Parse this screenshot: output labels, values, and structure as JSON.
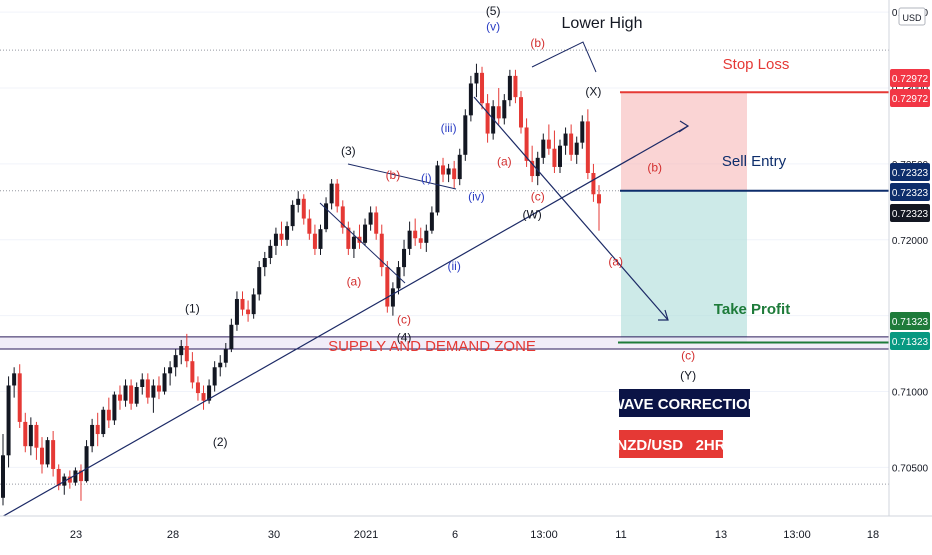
{
  "chart_data": {
    "type": "candlestick",
    "symbol": "NZD/USD",
    "timeframe": "2HR",
    "currency_label": "USD",
    "y_axis": {
      "ylim": [
        0.7018,
        0.7358
      ],
      "ticks": [
        0.705,
        0.71,
        0.715,
        0.72,
        0.725,
        0.73,
        0.735
      ],
      "tick_labels": [
        "0.70500",
        "0.71000",
        "0.71500",
        "0.72000",
        "0.72500",
        "0.73000",
        "0.73500"
      ]
    },
    "x_axis": {
      "tick_labels": [
        "23",
        "28",
        "30",
        "2021",
        "6",
        "13:00",
        "11",
        "13",
        "13:00",
        "18"
      ]
    },
    "price_badges": [
      {
        "label": "0.72972",
        "value": 0.72972,
        "color": "#f23645"
      },
      {
        "label": "0.72972",
        "value": 0.72972,
        "color": "#f23645"
      },
      {
        "label": "0.72323",
        "value": 0.72323,
        "color": "#0d2d6b"
      },
      {
        "label": "0.72323",
        "value": 0.72323,
        "color": "#0d2d6b"
      },
      {
        "label": "0.72323",
        "value": 0.72323,
        "color": "#131722"
      },
      {
        "label": "0.71323",
        "value": 0.71323,
        "color": "#1e7b3a"
      },
      {
        "label": "0.71323",
        "value": 0.71323,
        "color": "#089981"
      }
    ],
    "trade": {
      "stop_loss_label": "Stop Loss",
      "stop_loss": 0.72972,
      "entry_label": "Sell Entry",
      "entry": 0.72323,
      "take_profit_label": "Take Profit",
      "take_profit": 0.71323
    },
    "zone_label": "SUPPLY AND DEMAND ZONE",
    "zone": [
      0.7128,
      0.7136
    ],
    "annotations": {
      "lower_high": "Lower High",
      "wave_correction": "WAVE CORRECTION",
      "pair_timeframe": "NZD/USD   2HR"
    },
    "wave_labels": [
      {
        "text": "(5)",
        "color": "#131722",
        "x": 88,
        "y": 0.7348
      },
      {
        "text": "(v)",
        "color": "#2b3ec4",
        "x": 88,
        "y": 0.7338
      },
      {
        "text": "(b)",
        "color": "#d32f2f",
        "x": 96,
        "y": 0.7327
      },
      {
        "text": "(X)",
        "color": "#131722",
        "x": 106,
        "y": 0.7295
      },
      {
        "text": "(3)",
        "color": "#131722",
        "x": 62,
        "y": 0.7256
      },
      {
        "text": "(b)",
        "color": "#d32f2f",
        "x": 70,
        "y": 0.724
      },
      {
        "text": "(i)",
        "color": "#2b3ec4",
        "x": 76,
        "y": 0.7238
      },
      {
        "text": "(iii)",
        "color": "#2b3ec4",
        "x": 80,
        "y": 0.7271
      },
      {
        "text": "(a)",
        "color": "#d32f2f",
        "x": 90,
        "y": 0.7249
      },
      {
        "text": "(iv)",
        "color": "#2b3ec4",
        "x": 85,
        "y": 0.7226
      },
      {
        "text": "(c)",
        "color": "#d32f2f",
        "x": 96,
        "y": 0.7226
      },
      {
        "text": "(W)",
        "color": "#131722",
        "x": 95,
        "y": 0.7214
      },
      {
        "text": "(b)",
        "color": "#d32f2f",
        "x": 117,
        "y": 0.7245
      },
      {
        "text": "(a)",
        "color": "#d32f2f",
        "x": 110,
        "y": 0.7183
      },
      {
        "text": "(a)",
        "color": "#d32f2f",
        "x": 63,
        "y": 0.717
      },
      {
        "text": "(ii)",
        "color": "#2b3ec4",
        "x": 81,
        "y": 0.718
      },
      {
        "text": "(c)",
        "color": "#d32f2f",
        "x": 72,
        "y": 0.7145
      },
      {
        "text": "(4)",
        "color": "#131722",
        "x": 72,
        "y": 0.7133
      },
      {
        "text": "(1)",
        "color": "#131722",
        "x": 34,
        "y": 0.7152
      },
      {
        "text": "(2)",
        "color": "#131722",
        "x": 39,
        "y": 0.7064
      },
      {
        "text": "(c)",
        "color": "#d32f2f",
        "x": 123,
        "y": 0.7121
      },
      {
        "text": "(Y)",
        "color": "#131722",
        "x": 123,
        "y": 0.7108
      }
    ],
    "candles": [
      [
        0.703,
        0.7072,
        0.7025,
        0.7058
      ],
      [
        0.7058,
        0.711,
        0.705,
        0.7104
      ],
      [
        0.7104,
        0.7116,
        0.7096,
        0.7112
      ],
      [
        0.7112,
        0.7118,
        0.7076,
        0.708
      ],
      [
        0.708,
        0.7086,
        0.706,
        0.7064
      ],
      [
        0.7064,
        0.7083,
        0.7058,
        0.7078
      ],
      [
        0.7078,
        0.708,
        0.7055,
        0.7063
      ],
      [
        0.7063,
        0.707,
        0.7046,
        0.7052
      ],
      [
        0.7052,
        0.707,
        0.705,
        0.7068
      ],
      [
        0.7068,
        0.7074,
        0.7044,
        0.7049
      ],
      [
        0.7049,
        0.7052,
        0.7035,
        0.7038
      ],
      [
        0.7038,
        0.7046,
        0.7032,
        0.7044
      ],
      [
        0.7044,
        0.7048,
        0.7036,
        0.704
      ],
      [
        0.704,
        0.705,
        0.7038,
        0.7048
      ],
      [
        0.7048,
        0.7052,
        0.7028,
        0.7041
      ],
      [
        0.7041,
        0.7068,
        0.704,
        0.7064
      ],
      [
        0.7064,
        0.7082,
        0.706,
        0.7078
      ],
      [
        0.7078,
        0.7086,
        0.7064,
        0.7072
      ],
      [
        0.7072,
        0.709,
        0.707,
        0.7088
      ],
      [
        0.7088,
        0.7096,
        0.7076,
        0.7081
      ],
      [
        0.7081,
        0.71,
        0.7078,
        0.7098
      ],
      [
        0.7098,
        0.7104,
        0.7088,
        0.7094
      ],
      [
        0.7094,
        0.7108,
        0.709,
        0.7104
      ],
      [
        0.7104,
        0.7108,
        0.7088,
        0.7092
      ],
      [
        0.7092,
        0.7106,
        0.709,
        0.7103
      ],
      [
        0.7103,
        0.7112,
        0.7098,
        0.7108
      ],
      [
        0.7108,
        0.7112,
        0.7092,
        0.7096
      ],
      [
        0.7096,
        0.7108,
        0.7086,
        0.7104
      ],
      [
        0.7104,
        0.711,
        0.7095,
        0.71
      ],
      [
        0.71,
        0.7116,
        0.7098,
        0.7112
      ],
      [
        0.7112,
        0.712,
        0.7104,
        0.7116
      ],
      [
        0.7116,
        0.7128,
        0.711,
        0.7124
      ],
      [
        0.7124,
        0.7134,
        0.7118,
        0.713
      ],
      [
        0.713,
        0.7138,
        0.7116,
        0.712
      ],
      [
        0.712,
        0.7126,
        0.7102,
        0.7106
      ],
      [
        0.7106,
        0.711,
        0.7094,
        0.7099
      ],
      [
        0.7099,
        0.7104,
        0.7088,
        0.7094
      ],
      [
        0.7094,
        0.7108,
        0.7092,
        0.7104
      ],
      [
        0.7104,
        0.712,
        0.71,
        0.7116
      ],
      [
        0.7116,
        0.7124,
        0.711,
        0.7119
      ],
      [
        0.7119,
        0.7132,
        0.7116,
        0.7128
      ],
      [
        0.7128,
        0.7148,
        0.7126,
        0.7144
      ],
      [
        0.7144,
        0.7166,
        0.714,
        0.7161
      ],
      [
        0.7161,
        0.7166,
        0.715,
        0.7154
      ],
      [
        0.7154,
        0.716,
        0.7146,
        0.7151
      ],
      [
        0.7151,
        0.7168,
        0.7148,
        0.7164
      ],
      [
        0.7164,
        0.7186,
        0.716,
        0.7182
      ],
      [
        0.7182,
        0.7192,
        0.7176,
        0.7188
      ],
      [
        0.7188,
        0.72,
        0.7184,
        0.7196
      ],
      [
        0.7196,
        0.7208,
        0.719,
        0.7204
      ],
      [
        0.7204,
        0.7212,
        0.7196,
        0.72
      ],
      [
        0.72,
        0.7212,
        0.7196,
        0.7209
      ],
      [
        0.7209,
        0.7226,
        0.7206,
        0.7223
      ],
      [
        0.7223,
        0.7232,
        0.7218,
        0.7227
      ],
      [
        0.7227,
        0.723,
        0.721,
        0.7214
      ],
      [
        0.7214,
        0.722,
        0.72,
        0.7204
      ],
      [
        0.7204,
        0.721,
        0.719,
        0.7194
      ],
      [
        0.7194,
        0.721,
        0.719,
        0.7207
      ],
      [
        0.7207,
        0.7228,
        0.7205,
        0.7224
      ],
      [
        0.7224,
        0.724,
        0.722,
        0.7237
      ],
      [
        0.7237,
        0.724,
        0.7218,
        0.7222
      ],
      [
        0.7222,
        0.7226,
        0.7204,
        0.7208
      ],
      [
        0.7208,
        0.7212,
        0.719,
        0.7194
      ],
      [
        0.7194,
        0.7206,
        0.7188,
        0.7202
      ],
      [
        0.7202,
        0.721,
        0.7194,
        0.7198
      ],
      [
        0.7198,
        0.7214,
        0.7196,
        0.721
      ],
      [
        0.721,
        0.7222,
        0.7206,
        0.7218
      ],
      [
        0.7218,
        0.7222,
        0.72,
        0.7204
      ],
      [
        0.7204,
        0.721,
        0.7176,
        0.7182
      ],
      [
        0.7182,
        0.7186,
        0.7152,
        0.7156
      ],
      [
        0.7156,
        0.7172,
        0.715,
        0.7168
      ],
      [
        0.7168,
        0.7186,
        0.7164,
        0.7182
      ],
      [
        0.7182,
        0.72,
        0.7176,
        0.7194
      ],
      [
        0.7194,
        0.7212,
        0.719,
        0.7206
      ],
      [
        0.7206,
        0.7214,
        0.7196,
        0.7201
      ],
      [
        0.7201,
        0.7208,
        0.7194,
        0.7198
      ],
      [
        0.7198,
        0.721,
        0.7192,
        0.7206
      ],
      [
        0.7206,
        0.7222,
        0.7204,
        0.7218
      ],
      [
        0.7218,
        0.7252,
        0.7216,
        0.7249
      ],
      [
        0.7249,
        0.7254,
        0.7238,
        0.7243
      ],
      [
        0.7243,
        0.725,
        0.7238,
        0.7247
      ],
      [
        0.7247,
        0.7252,
        0.7234,
        0.724
      ],
      [
        0.724,
        0.726,
        0.7236,
        0.7256
      ],
      [
        0.7256,
        0.7286,
        0.7252,
        0.7282
      ],
      [
        0.7282,
        0.7308,
        0.7278,
        0.7303
      ],
      [
        0.7303,
        0.7316,
        0.7294,
        0.731
      ],
      [
        0.731,
        0.7314,
        0.7286,
        0.729
      ],
      [
        0.729,
        0.7296,
        0.7264,
        0.727
      ],
      [
        0.727,
        0.7292,
        0.7266,
        0.7288
      ],
      [
        0.7288,
        0.73,
        0.7276,
        0.728
      ],
      [
        0.728,
        0.7296,
        0.7276,
        0.7292
      ],
      [
        0.7292,
        0.7312,
        0.7288,
        0.7308
      ],
      [
        0.7308,
        0.7312,
        0.729,
        0.7294
      ],
      [
        0.7294,
        0.7298,
        0.727,
        0.7274
      ],
      [
        0.7274,
        0.728,
        0.7248,
        0.7252
      ],
      [
        0.7252,
        0.7262,
        0.7238,
        0.7242
      ],
      [
        0.7242,
        0.7258,
        0.7236,
        0.7254
      ],
      [
        0.7254,
        0.727,
        0.725,
        0.7266
      ],
      [
        0.7266,
        0.7276,
        0.7256,
        0.726
      ],
      [
        0.726,
        0.7272,
        0.7244,
        0.7248
      ],
      [
        0.7248,
        0.7266,
        0.7244,
        0.7262
      ],
      [
        0.7262,
        0.7274,
        0.7256,
        0.727
      ],
      [
        0.727,
        0.7276,
        0.7252,
        0.7256
      ],
      [
        0.7256,
        0.7268,
        0.725,
        0.7264
      ],
      [
        0.7264,
        0.7282,
        0.726,
        0.7278
      ],
      [
        0.7278,
        0.7286,
        0.724,
        0.7244
      ],
      [
        0.7244,
        0.725,
        0.7225,
        0.723
      ],
      [
        0.723,
        0.7236,
        0.7206,
        0.7224
      ]
    ]
  }
}
